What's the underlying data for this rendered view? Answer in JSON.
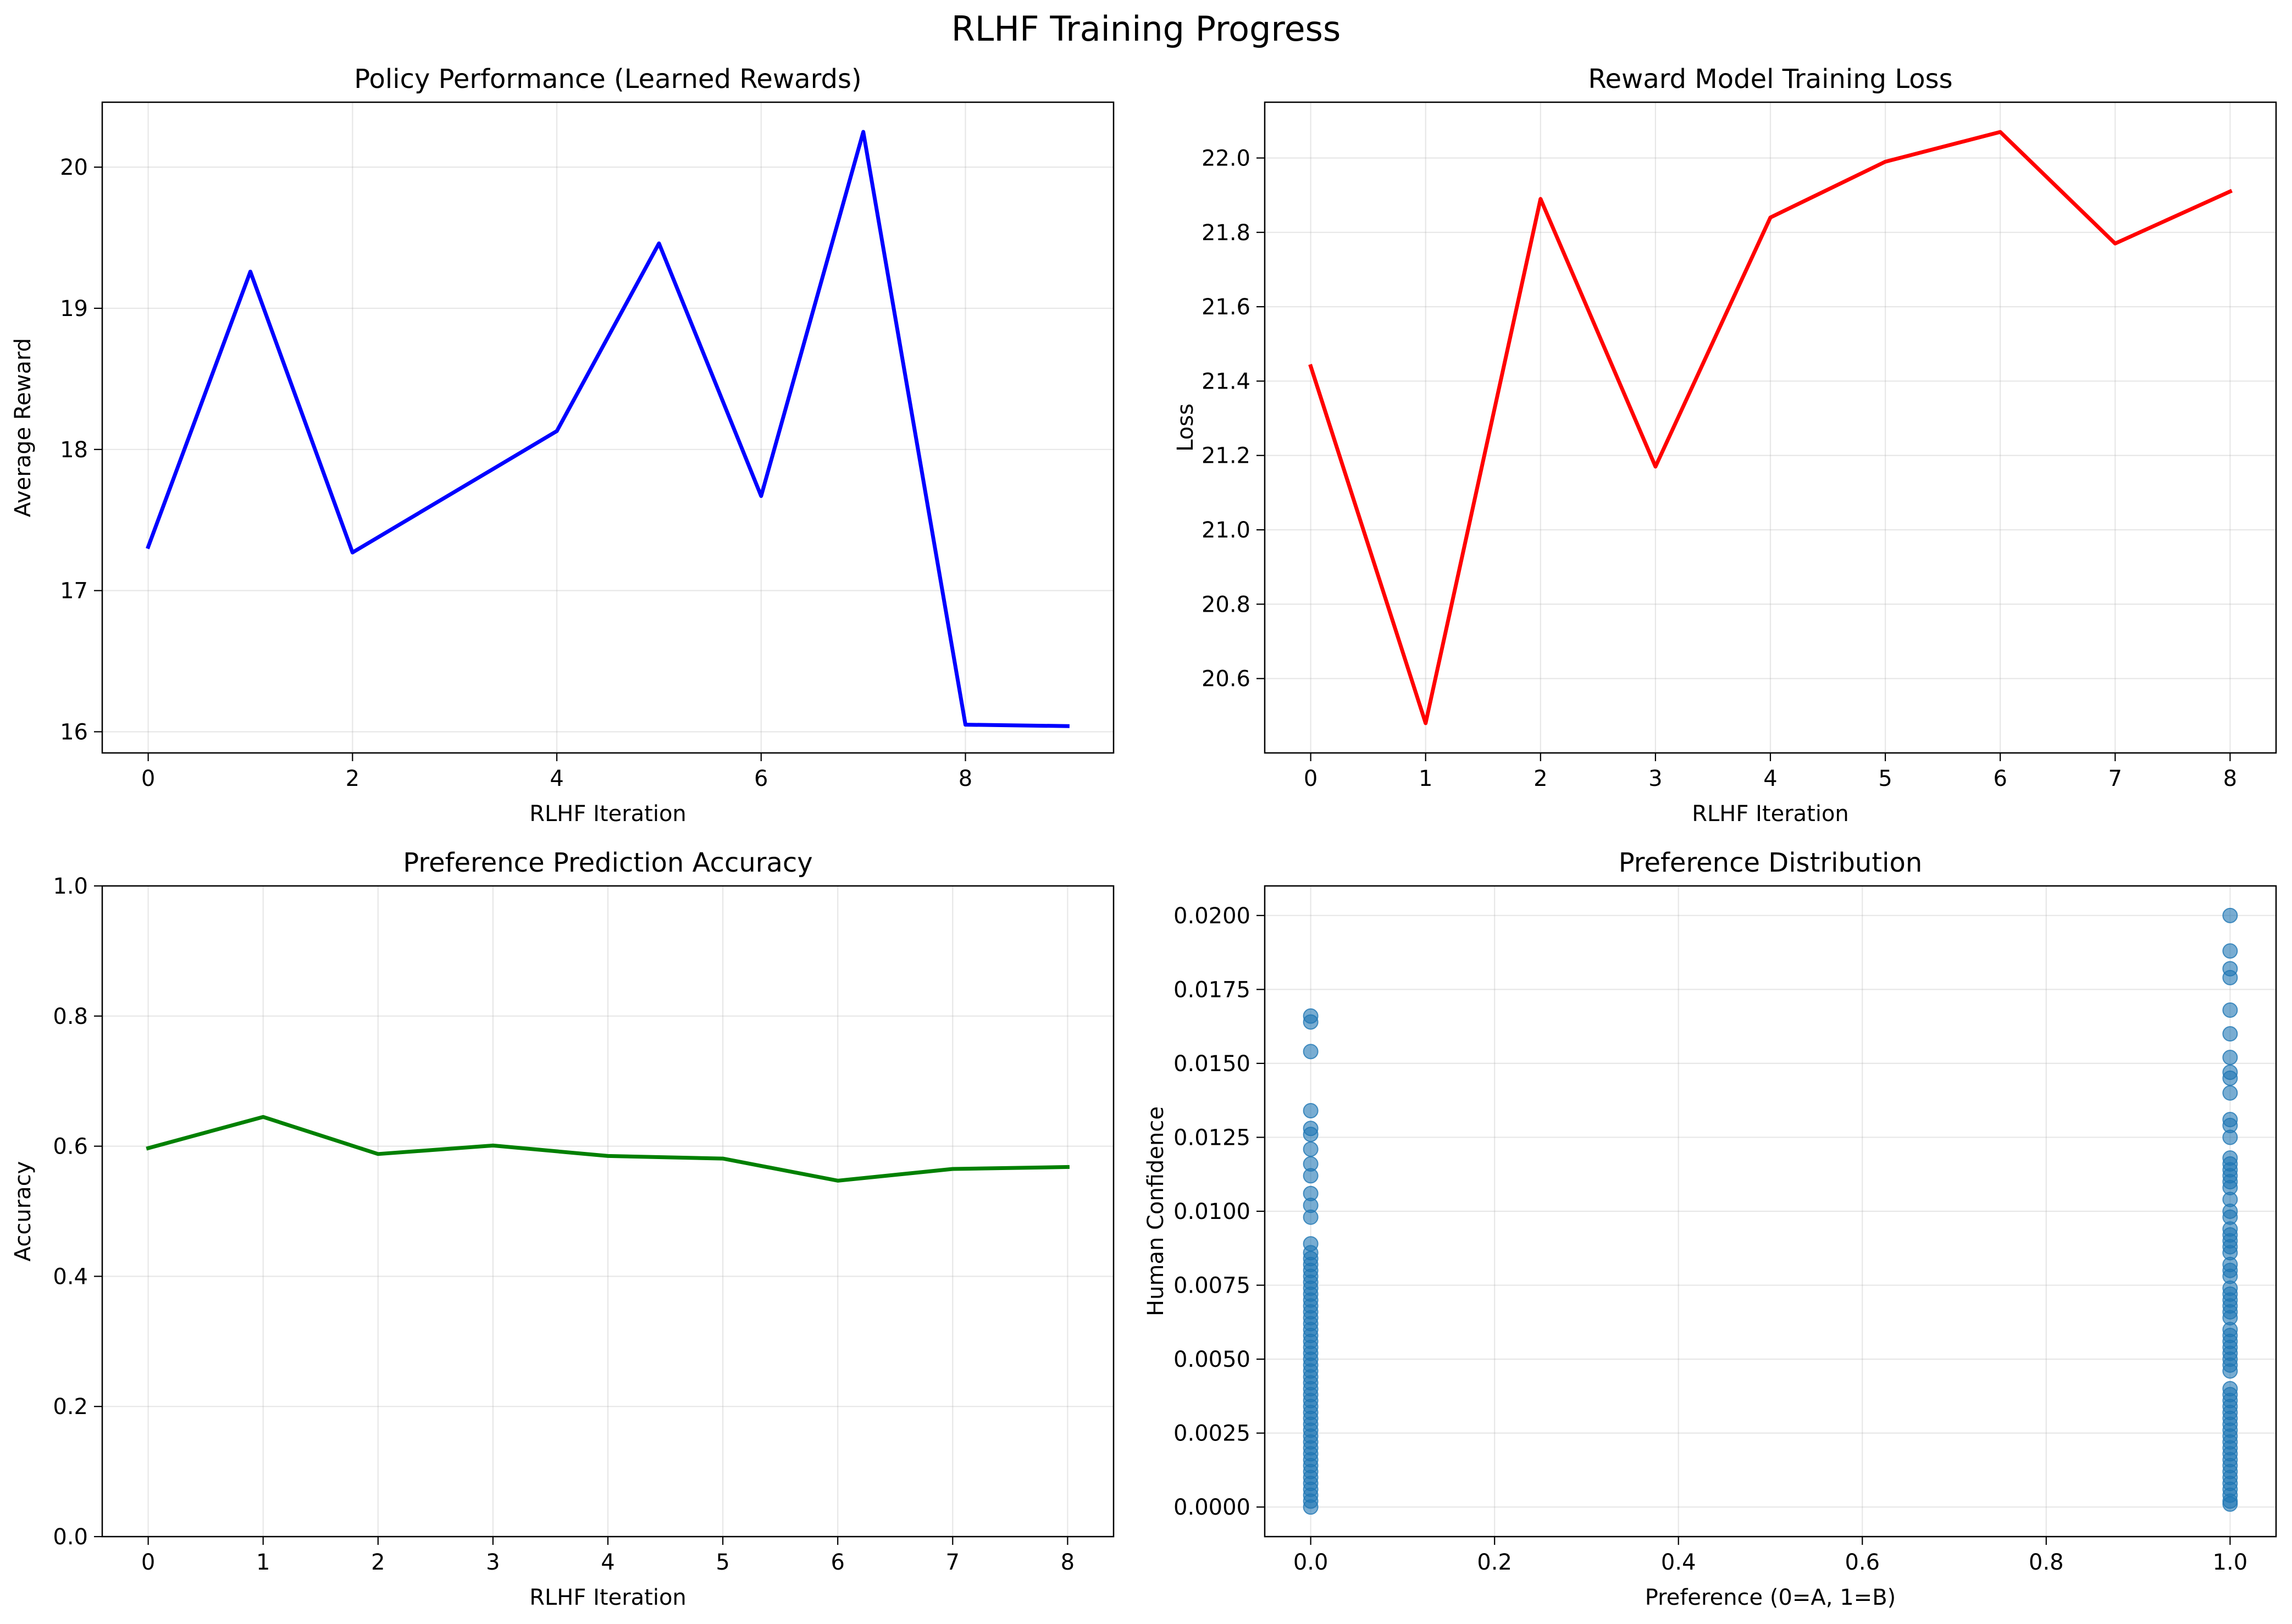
{
  "figure": {
    "suptitle": "RLHF Training Progress"
  },
  "colors": {
    "reward_line": "#0000ff",
    "loss_line": "#ff0000",
    "accuracy_line": "#008000",
    "scatter_points": "#1f77b4",
    "grid": "#b0b0b0",
    "axes": "#000000"
  },
  "chart_data": [
    {
      "id": "policy",
      "type": "line",
      "title": "Policy Performance (Learned Rewards)",
      "xlabel": "RLHF Iteration",
      "ylabel": "Average Reward",
      "x": [
        0,
        1,
        2,
        3,
        4,
        5,
        6,
        7,
        8,
        9
      ],
      "series": [
        {
          "values": [
            17.31,
            19.26,
            17.27,
            17.7,
            18.13,
            19.46,
            17.67,
            20.25,
            16.05,
            16.04
          ]
        }
      ],
      "xlim": [
        -0.45,
        9.45
      ],
      "ylim": [
        15.85,
        20.46
      ],
      "xticks": [
        0,
        2,
        4,
        6,
        8
      ],
      "xtick_labels": [
        "0",
        "2",
        "4",
        "6",
        "8"
      ],
      "yticks": [
        16,
        17,
        18,
        19,
        20
      ],
      "ytick_labels": [
        "16",
        "17",
        "18",
        "19",
        "20"
      ],
      "grid": true
    },
    {
      "id": "loss",
      "type": "line",
      "title": "Reward Model Training Loss",
      "xlabel": "RLHF Iteration",
      "ylabel": "Loss",
      "x": [
        0,
        1,
        2,
        3,
        4,
        5,
        6,
        7,
        8
      ],
      "series": [
        {
          "values": [
            21.44,
            20.48,
            21.89,
            21.17,
            21.84,
            21.99,
            22.07,
            21.77,
            21.91
          ]
        }
      ],
      "xlim": [
        -0.4,
        8.4
      ],
      "ylim": [
        20.4,
        22.15
      ],
      "xticks": [
        0,
        1,
        2,
        3,
        4,
        5,
        6,
        7,
        8
      ],
      "xtick_labels": [
        "0",
        "1",
        "2",
        "3",
        "4",
        "5",
        "6",
        "7",
        "8"
      ],
      "yticks": [
        20.6,
        20.8,
        21.0,
        21.2,
        21.4,
        21.6,
        21.8,
        22.0
      ],
      "ytick_labels": [
        "20.6",
        "20.8",
        "21.0",
        "21.2",
        "21.4",
        "21.6",
        "21.8",
        "22.0"
      ],
      "grid": true
    },
    {
      "id": "accuracy",
      "type": "line",
      "title": "Preference Prediction Accuracy",
      "xlabel": "RLHF Iteration",
      "ylabel": "Accuracy",
      "x": [
        0,
        1,
        2,
        3,
        4,
        5,
        6,
        7,
        8
      ],
      "series": [
        {
          "values": [
            0.597,
            0.645,
            0.588,
            0.601,
            0.585,
            0.581,
            0.547,
            0.565,
            0.568
          ]
        }
      ],
      "xlim": [
        -0.4,
        8.4
      ],
      "ylim": [
        0.0,
        1.0
      ],
      "xticks": [
        0,
        1,
        2,
        3,
        4,
        5,
        6,
        7,
        8
      ],
      "xtick_labels": [
        "0",
        "1",
        "2",
        "3",
        "4",
        "5",
        "6",
        "7",
        "8"
      ],
      "yticks": [
        0.0,
        0.2,
        0.4,
        0.6,
        0.8,
        1.0
      ],
      "ytick_labels": [
        "0.0",
        "0.2",
        "0.4",
        "0.6",
        "0.8",
        "1.0"
      ],
      "grid": true
    },
    {
      "id": "distribution",
      "type": "scatter",
      "title": "Preference Distribution",
      "xlabel": "Preference (0=A, 1=B)",
      "ylabel": "Human Confidence",
      "series": [
        {
          "x": 0,
          "values": [
            0.0166,
            0.0164,
            0.0154,
            0.0134,
            0.0128,
            0.0126,
            0.0121,
            0.0116,
            0.0112,
            0.0106,
            0.0102,
            0.0098,
            0.0089,
            0.0086,
            0.0084,
            0.0082,
            0.008,
            0.0078,
            0.0076,
            0.0074,
            0.0072,
            0.007,
            0.0068,
            0.0066,
            0.0064,
            0.0062,
            0.006,
            0.0058,
            0.0056,
            0.0054,
            0.0052,
            0.005,
            0.0048,
            0.0046,
            0.0044,
            0.0042,
            0.004,
            0.0038,
            0.0036,
            0.0034,
            0.0032,
            0.003,
            0.0028,
            0.0026,
            0.0024,
            0.0022,
            0.002,
            0.0018,
            0.0016,
            0.0014,
            0.0012,
            0.001,
            0.0008,
            0.0006,
            0.0004,
            0.0002,
            0.0
          ]
        },
        {
          "x": 1,
          "values": [
            0.02,
            0.0188,
            0.0182,
            0.0179,
            0.0168,
            0.016,
            0.0152,
            0.0147,
            0.0145,
            0.014,
            0.0131,
            0.0129,
            0.0125,
            0.0118,
            0.0116,
            0.0114,
            0.0112,
            0.011,
            0.0108,
            0.0104,
            0.01,
            0.0098,
            0.0094,
            0.0092,
            0.009,
            0.0088,
            0.0086,
            0.0082,
            0.008,
            0.0078,
            0.0074,
            0.0072,
            0.007,
            0.0068,
            0.0066,
            0.0064,
            0.006,
            0.0058,
            0.0056,
            0.0054,
            0.0052,
            0.005,
            0.0048,
            0.0046,
            0.004,
            0.0038,
            0.0036,
            0.0034,
            0.0032,
            0.003,
            0.0028,
            0.0026,
            0.0024,
            0.0022,
            0.002,
            0.0018,
            0.0016,
            0.0014,
            0.0012,
            0.001,
            0.0008,
            0.0006,
            0.0004,
            0.0002,
            0.0001
          ]
        }
      ],
      "xlim": [
        -0.05,
        1.05
      ],
      "ylim": [
        -0.001,
        0.021
      ],
      "xticks": [
        0.0,
        0.2,
        0.4,
        0.6,
        0.8,
        1.0
      ],
      "xtick_labels": [
        "0.0",
        "0.2",
        "0.4",
        "0.6",
        "0.8",
        "1.0"
      ],
      "yticks": [
        0.0,
        0.0025,
        0.005,
        0.0075,
        0.01,
        0.0125,
        0.015,
        0.0175,
        0.02
      ],
      "ytick_labels": [
        "0.0000",
        "0.0025",
        "0.0050",
        "0.0075",
        "0.0100",
        "0.0125",
        "0.0150",
        "0.0175",
        "0.0200"
      ],
      "grid": true
    }
  ]
}
